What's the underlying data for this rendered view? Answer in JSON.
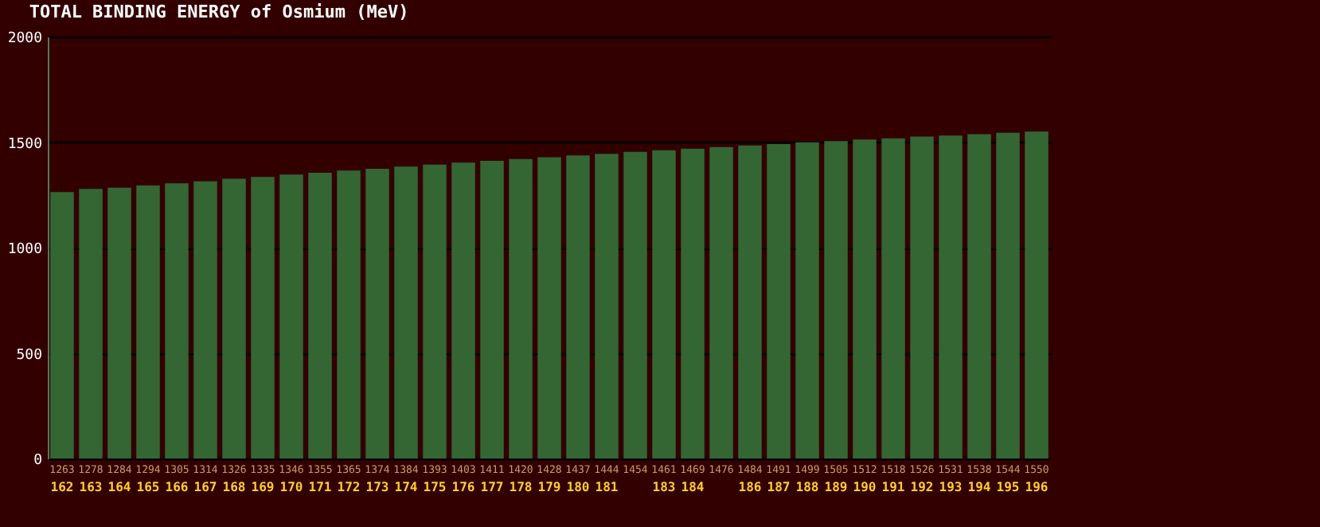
{
  "chart_data": {
    "type": "bar",
    "title": "TOTAL BINDING ENERGY of Osmium (MeV)",
    "categories": [
      "162",
      "163",
      "164",
      "165",
      "166",
      "167",
      "168",
      "169",
      "170",
      "171",
      "172",
      "173",
      "174",
      "175",
      "176",
      "177",
      "178",
      "179",
      "180",
      "181",
      null,
      "183",
      "184",
      null,
      "186",
      "187",
      "188",
      "189",
      "190",
      "191",
      "192",
      "193",
      "194",
      "195",
      "196"
    ],
    "values": [
      1263,
      1278,
      1284,
      1294,
      1305,
      1314,
      1326,
      1335,
      1346,
      1355,
      1365,
      1374,
      1384,
      1393,
      1403,
      1411,
      1420,
      1428,
      1437,
      1444,
      1454,
      1461,
      1469,
      1476,
      1484,
      1491,
      1499,
      1505,
      1512,
      1518,
      1526,
      1531,
      1538,
      1544,
      1550
    ],
    "color": "#336633",
    "data_labels": true,
    "grid": "y",
    "ylim": [
      0,
      2000
    ],
    "yticks": [
      0,
      500,
      1000,
      1500,
      2000
    ]
  }
}
